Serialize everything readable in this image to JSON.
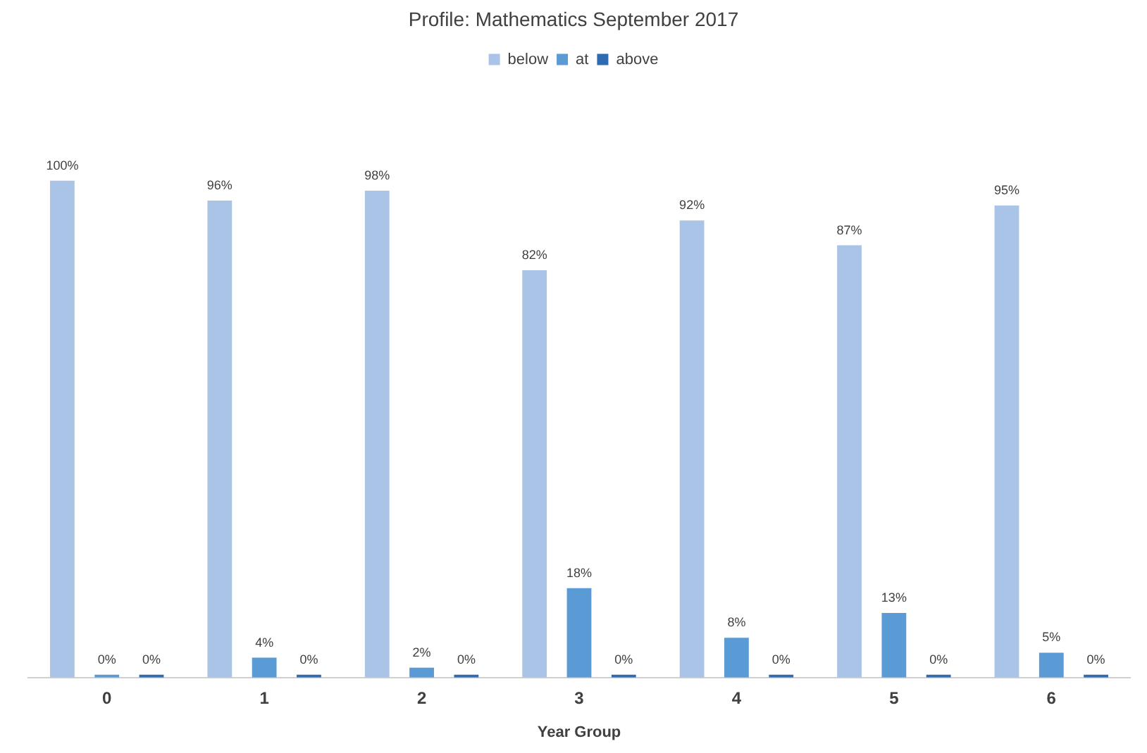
{
  "chart_data": {
    "type": "bar",
    "title": "Profile: Mathematics September 2017",
    "xlabel": "Year Group",
    "categories": [
      "0",
      "1",
      "2",
      "3",
      "4",
      "5",
      "6"
    ],
    "series": [
      {
        "name": "below",
        "color": "#a9c4e6",
        "values": [
          100,
          96,
          98,
          82,
          92,
          87,
          95
        ],
        "value_labels": [
          "100%",
          "96%",
          "98%",
          "82%",
          "92%",
          "87%",
          "95%"
        ]
      },
      {
        "name": "at",
        "color": "#5b9bd5",
        "values": [
          0,
          4,
          2,
          18,
          8,
          13,
          5
        ],
        "value_labels": [
          "0%",
          "4%",
          "2%",
          "18%",
          "8%",
          "13%",
          "5%"
        ]
      },
      {
        "name": "above",
        "color": "#2e6bb0",
        "values": [
          0,
          0,
          0,
          0,
          0,
          0,
          0
        ],
        "value_labels": [
          "0%",
          "0%",
          "0%",
          "0%",
          "0%",
          "0%",
          "0%"
        ]
      }
    ],
    "legend": "top",
    "grid": false
  }
}
